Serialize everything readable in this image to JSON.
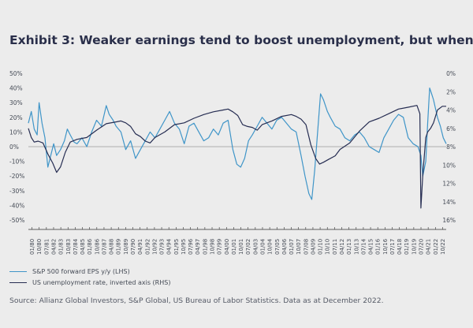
{
  "page": {
    "title": "Exhibit 3: Weaker earnings tend to boost unemployment, but when?",
    "source": "Source: Allianz Global Investors, S&P Global, US Bureau of Labor Statistics. Data as at December 2022."
  },
  "colors": {
    "eps": "#3f95c8",
    "unemp": "#262d52",
    "zero_line": "#9a9a9a",
    "text": "#444a55"
  },
  "chart_data": {
    "type": "line",
    "title": "",
    "y_left": {
      "ylim": [
        -50,
        50
      ],
      "ticks": [
        "50%",
        "40%",
        "30%",
        "20%",
        "10%",
        "0%",
        "-10%",
        "-20%",
        "-30%",
        "-40%",
        "-50%"
      ]
    },
    "y_right": {
      "ylim": [
        0,
        16
      ],
      "inverted": true,
      "ticks": [
        "0%",
        "2%",
        "4%",
        "6%",
        "8%",
        "10%",
        "12%",
        "14%",
        "16%"
      ]
    },
    "x_tick_labels": [
      "01/80",
      "10/80",
      "07/81",
      "04/82",
      "01/83",
      "10/83",
      "07/84",
      "04/85",
      "01/86",
      "10/86",
      "07/87",
      "04/88",
      "01/89",
      "10/89",
      "07/90",
      "04/91",
      "01/92",
      "10/92",
      "07/93",
      "04/94",
      "01/95",
      "10/95",
      "07/96",
      "04/97",
      "01/98",
      "10/98",
      "07/99",
      "04/00",
      "01/01",
      "10/01",
      "07/02",
      "04/03",
      "01/04",
      "10/04",
      "07/05",
      "04/06",
      "01/07",
      "10/07",
      "07/08",
      "04/09",
      "01/10",
      "10/10",
      "07/11",
      "04/12",
      "01/13",
      "10/13",
      "07/14",
      "04/15",
      "01/16",
      "10/16",
      "07/17",
      "04/18",
      "01/19",
      "10/19",
      "07/20",
      "04/21",
      "01/22",
      "10/22"
    ],
    "x_range": [
      1980.0,
      2022.9
    ],
    "legend_placement": "bottom-left",
    "series": [
      {
        "name": "S&P 500 forward EPS y/y (LHS)",
        "axis": "left",
        "x": [
          1980.0,
          1980.3,
          1980.6,
          1980.9,
          1981.1,
          1981.4,
          1981.7,
          1982.0,
          1982.3,
          1982.6,
          1982.9,
          1983.3,
          1983.7,
          1984.0,
          1984.3,
          1984.7,
          1985.0,
          1985.5,
          1986.0,
          1986.5,
          1987.0,
          1987.5,
          1988.0,
          1988.3,
          1988.7,
          1989.0,
          1989.5,
          1990.0,
          1990.5,
          1991.0,
          1991.5,
          1992.0,
          1992.5,
          1993.0,
          1993.5,
          1994.0,
          1994.5,
          1995.0,
          1995.5,
          1996.0,
          1996.5,
          1997.0,
          1997.5,
          1998.0,
          1998.5,
          1999.0,
          1999.5,
          2000.0,
          2000.5,
          2001.0,
          2001.4,
          2001.8,
          2002.2,
          2002.6,
          2003.0,
          2003.5,
          2004.0,
          2004.5,
          2005.0,
          2005.5,
          2006.0,
          2006.5,
          2007.0,
          2007.5,
          2008.0,
          2008.4,
          2008.8,
          2009.1,
          2009.4,
          2009.7,
          2010.0,
          2010.3,
          2010.7,
          2011.0,
          2011.5,
          2012.0,
          2012.5,
          2013.0,
          2013.5,
          2014.0,
          2014.5,
          2015.0,
          2015.5,
          2016.0,
          2016.5,
          2017.0,
          2017.5,
          2018.0,
          2018.5,
          2019.0,
          2019.5,
          2020.0,
          2020.3,
          2020.5,
          2020.8,
          2021.0,
          2021.2,
          2021.4,
          2021.6,
          2021.8,
          2022.0,
          2022.3,
          2022.6,
          2022.9
        ],
        "y": [
          16,
          24,
          12,
          8,
          30,
          16,
          6,
          -14,
          -6,
          2,
          -6,
          -2,
          4,
          12,
          8,
          3,
          2,
          6,
          0,
          10,
          18,
          14,
          28,
          22,
          18,
          14,
          10,
          -2,
          4,
          -8,
          -2,
          4,
          10,
          6,
          12,
          18,
          24,
          16,
          12,
          2,
          14,
          16,
          10,
          4,
          6,
          12,
          8,
          16,
          18,
          -2,
          -12,
          -14,
          -8,
          4,
          8,
          14,
          20,
          16,
          12,
          18,
          20,
          16,
          12,
          10,
          -6,
          -20,
          -32,
          -36,
          -16,
          10,
          36,
          32,
          24,
          20,
          14,
          12,
          6,
          4,
          8,
          10,
          6,
          0,
          -2,
          -4,
          6,
          12,
          18,
          22,
          20,
          6,
          2,
          0,
          -6,
          -20,
          -10,
          16,
          40,
          36,
          32,
          26,
          20,
          14,
          6,
          2
        ]
      },
      {
        "name": "US unemployment rate, inverted axis (RHS)",
        "axis": "right",
        "x": [
          1980.0,
          1980.3,
          1980.6,
          1981.0,
          1981.5,
          1982.0,
          1982.5,
          1982.9,
          1983.3,
          1983.8,
          1984.3,
          1985.0,
          1986.0,
          1987.0,
          1988.0,
          1989.0,
          1989.5,
          1990.0,
          1990.5,
          1991.0,
          1991.5,
          1992.0,
          1992.5,
          1993.0,
          1994.0,
          1995.0,
          1996.0,
          1997.0,
          1998.0,
          1999.0,
          2000.0,
          2000.5,
          2001.0,
          2001.5,
          2002.0,
          2002.5,
          2003.0,
          2003.5,
          2004.0,
          2005.0,
          2006.0,
          2007.0,
          2007.5,
          2008.0,
          2008.5,
          2009.0,
          2009.5,
          2009.9,
          2010.3,
          2010.8,
          2011.5,
          2012.0,
          2013.0,
          2014.0,
          2015.0,
          2016.0,
          2017.0,
          2018.0,
          2019.0,
          2019.9,
          2020.2,
          2020.3,
          2020.5,
          2020.8,
          2021.0,
          2021.3,
          2021.6,
          2022.0,
          2022.5,
          2022.9
        ],
        "y": [
          6.0,
          7.0,
          7.5,
          7.4,
          7.6,
          8.8,
          9.8,
          10.8,
          10.2,
          8.6,
          7.5,
          7.2,
          7.0,
          6.2,
          5.5,
          5.3,
          5.2,
          5.4,
          5.8,
          6.6,
          6.9,
          7.4,
          7.6,
          7.0,
          6.4,
          5.6,
          5.4,
          4.9,
          4.5,
          4.2,
          4.0,
          3.9,
          4.2,
          4.6,
          5.6,
          5.8,
          5.9,
          6.2,
          5.6,
          5.2,
          4.7,
          4.5,
          4.7,
          5.0,
          5.6,
          7.8,
          9.3,
          9.9,
          9.7,
          9.4,
          9.0,
          8.3,
          7.6,
          6.3,
          5.3,
          4.9,
          4.4,
          3.9,
          3.7,
          3.5,
          4.4,
          14.7,
          11.1,
          7.0,
          6.4,
          6.0,
          5.4,
          4.0,
          3.6,
          3.6
        ]
      }
    ]
  }
}
